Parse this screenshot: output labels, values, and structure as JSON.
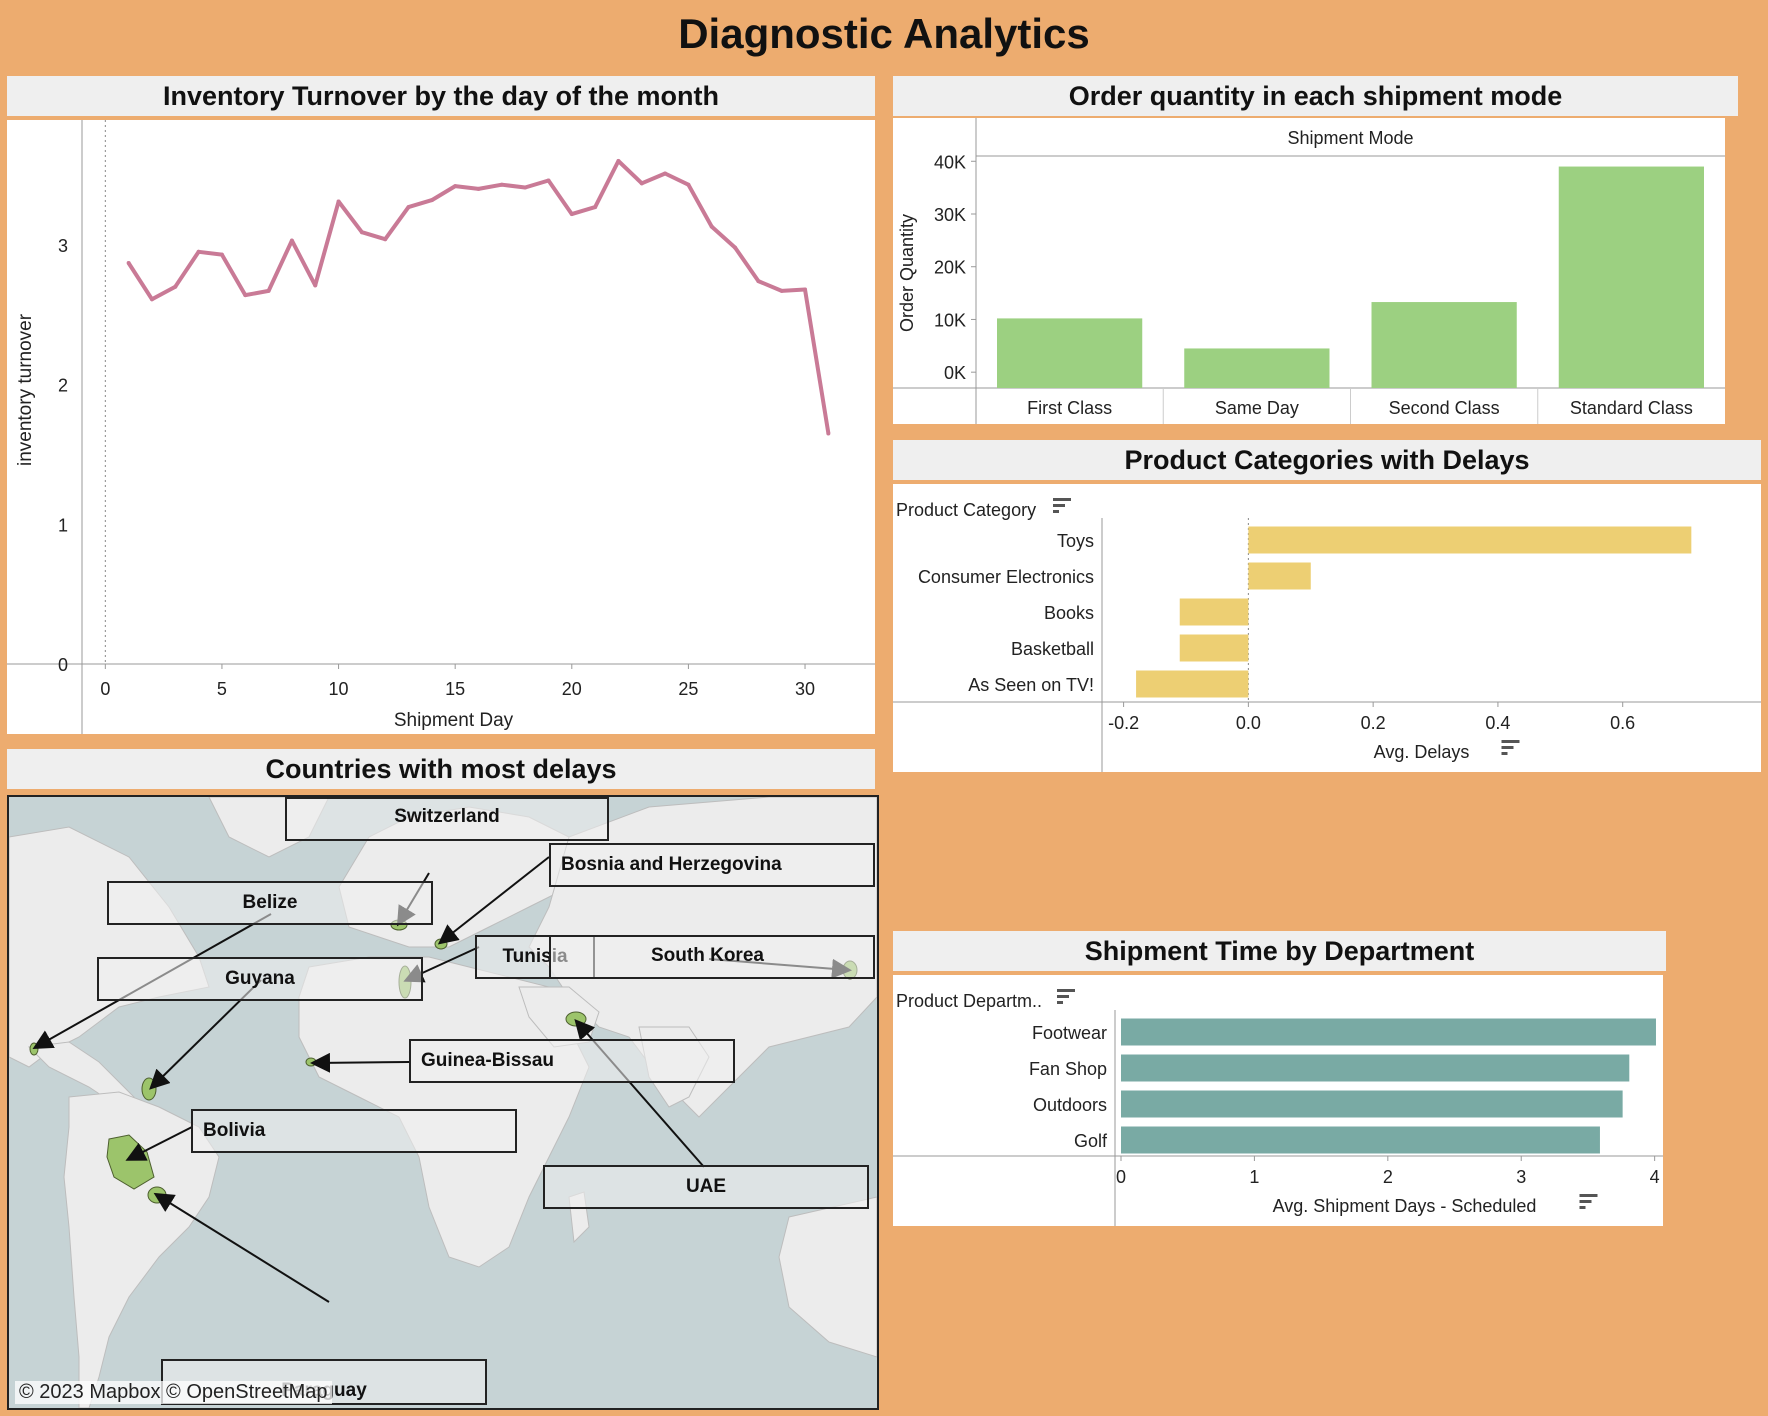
{
  "dashboard": {
    "title": "Diagnostic Analytics"
  },
  "map_panel": {
    "title": "Countries with most delays",
    "attribution": "© 2023 Mapbox  © OpenStreetMap",
    "countries": [
      {
        "label": "Switzerland"
      },
      {
        "label": "Bosnia and Herzegovina"
      },
      {
        "label": "Belize"
      },
      {
        "label": "Tunisia"
      },
      {
        "label": "South Korea"
      },
      {
        "label": "Guyana"
      },
      {
        "label": "Guinea-Bissau"
      },
      {
        "label": "Bolivia"
      },
      {
        "label": "UAE"
      },
      {
        "label": "Paraguay"
      }
    ],
    "colors": {
      "water": "#C6D3D5",
      "land": "#ECECEC",
      "highlight": "#9CC46B"
    }
  },
  "chart_data": [
    {
      "id": "turnover",
      "type": "line",
      "title": "Inventory Turnover by the day of the month",
      "xlabel": "Shipment Day",
      "ylabel": "inventory turnover",
      "xlim": [
        -1,
        33
      ],
      "ylim": [
        0,
        3.75
      ],
      "xticks": [
        0,
        5,
        10,
        15,
        20,
        25,
        30
      ],
      "yticks": [
        0,
        1,
        2,
        3
      ],
      "color": "#C97A96",
      "x": [
        1,
        2,
        3,
        4,
        5,
        6,
        7,
        8,
        9,
        10,
        11,
        12,
        13,
        14,
        15,
        16,
        17,
        18,
        19,
        20,
        21,
        22,
        23,
        24,
        25,
        26,
        27,
        28,
        29,
        30,
        31
      ],
      "y": [
        2.87,
        2.61,
        2.7,
        2.95,
        2.93,
        2.64,
        2.67,
        3.03,
        2.71,
        3.31,
        3.09,
        3.04,
        3.27,
        3.32,
        3.42,
        3.4,
        3.43,
        3.41,
        3.46,
        3.22,
        3.27,
        3.6,
        3.44,
        3.51,
        3.43,
        3.13,
        2.98,
        2.74,
        2.67,
        2.68,
        1.65
      ]
    },
    {
      "id": "shipmode",
      "type": "bar",
      "title": "Order quantity in each shipment mode",
      "column_header": "Shipment Mode",
      "ylabel": "Order Quantity",
      "categories": [
        "First Class",
        "Same Day",
        "Second Class",
        "Standard Class"
      ],
      "values": [
        10200,
        4500,
        13300,
        39000
      ],
      "ylim": [
        -3000,
        41000
      ],
      "yticks": [
        0,
        10000,
        20000,
        30000,
        40000
      ],
      "ytick_labels": [
        "0K",
        "10K",
        "20K",
        "30K",
        "40K"
      ],
      "color": "#9CD081"
    },
    {
      "id": "delays",
      "type": "bar",
      "orientation": "horizontal",
      "title": "Product Categories with Delays",
      "row_header": "Product Category",
      "xlabel": "Avg. Delays",
      "categories": [
        "Toys",
        "Consumer Electronics",
        "Books",
        "Basketball",
        "As Seen on  TV!"
      ],
      "values": [
        0.71,
        0.1,
        -0.11,
        -0.11,
        -0.18
      ],
      "xlim": [
        -0.225,
        0.78
      ],
      "xticks": [
        -0.2,
        0.0,
        0.2,
        0.4,
        0.6
      ],
      "xtick_labels": [
        "-0.2",
        "0.0",
        "0.2",
        "0.4",
        "0.6"
      ],
      "color": "#EDCF73"
    },
    {
      "id": "shiptime",
      "type": "bar",
      "orientation": "horizontal",
      "title": "Shipment Time by Department",
      "row_header": "Product Departm..",
      "xlabel": "Avg. Shipment Days - Scheduled",
      "categories": [
        "Footwear",
        "Fan Shop",
        "Outdoors",
        "Golf"
      ],
      "values": [
        4.01,
        3.81,
        3.76,
        3.59
      ],
      "xlim": [
        0,
        4.25
      ],
      "xticks": [
        0,
        1,
        2,
        3,
        4
      ],
      "xtick_labels": [
        "0",
        "1",
        "2",
        "3",
        "4"
      ],
      "color": "#79AAA4"
    }
  ]
}
